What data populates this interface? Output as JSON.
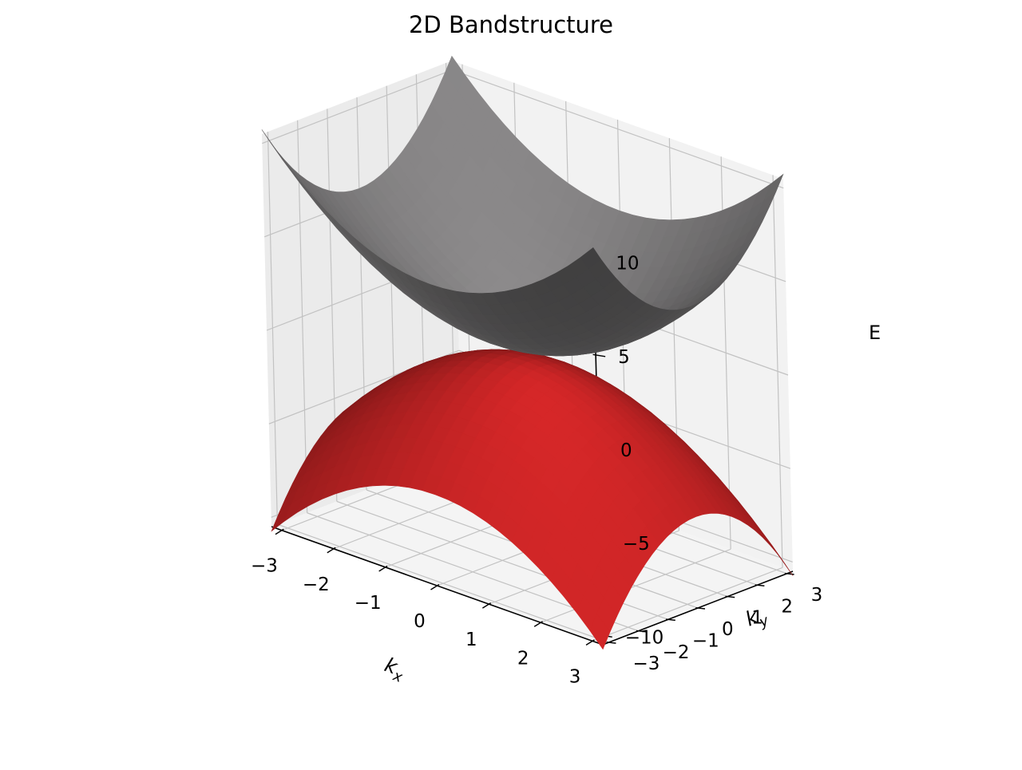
{
  "chart_data": {
    "type": "surface3d",
    "title": "2D Bandstructure",
    "xlabel": "k_x",
    "ylabel": "k_y",
    "zlabel": "E",
    "xlim": [
      -3.2,
      3.2
    ],
    "ylim": [
      -3.2,
      3.2
    ],
    "zlim": [
      -10.5,
      10.5
    ],
    "x_ticks": [
      -3,
      -2,
      -1,
      0,
      1,
      2,
      3
    ],
    "y_ticks": [
      -3,
      -2,
      -1,
      0,
      1,
      2,
      3
    ],
    "z_ticks": [
      -10,
      -5,
      0,
      5,
      10
    ],
    "grid": true,
    "surfaces": [
      {
        "function": "E = +(0.5 + 0.5 (k_x^2 + k_y^2))",
        "x_range": [
          -3.2,
          3.2
        ],
        "y_range": [
          -3.2,
          3.2
        ],
        "color": "#8c8a8b"
      },
      {
        "function": "E = -(0.5 + 0.5 (k_x^2 + k_y^2))",
        "x_range": [
          -3.2,
          3.2
        ],
        "y_range": [
          -3.2,
          3.2
        ],
        "color": "#d62728"
      }
    ]
  }
}
